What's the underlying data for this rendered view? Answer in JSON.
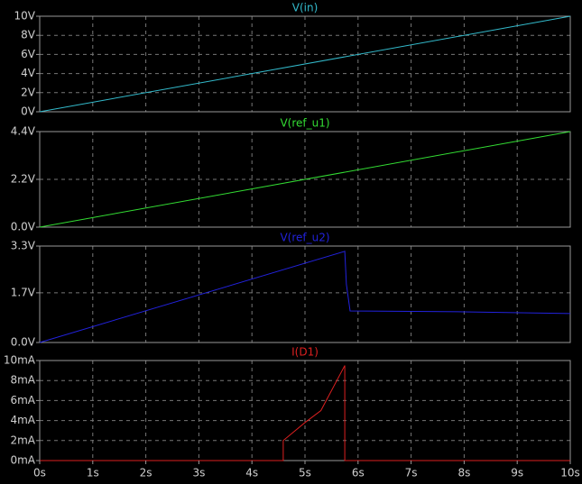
{
  "chart_data": [
    {
      "type": "line",
      "xlim": [
        0,
        10
      ],
      "ylim": [
        0,
        10
      ],
      "grid": true,
      "yticks": [
        {
          "value": 0,
          "label": "0V"
        },
        {
          "value": 2,
          "label": "2V"
        },
        {
          "value": 4,
          "label": "4V"
        },
        {
          "value": 6,
          "label": "6V"
        },
        {
          "value": 8,
          "label": "8V"
        },
        {
          "value": 10,
          "label": "10V"
        }
      ],
      "x": [
        0,
        10
      ],
      "series": [
        {
          "name": "V(in)",
          "color": "#33bbcc",
          "values": [
            0,
            10
          ]
        }
      ]
    },
    {
      "type": "line",
      "xlim": [
        0,
        10
      ],
      "ylim": [
        0,
        4.4
      ],
      "grid": true,
      "yticks": [
        {
          "value": 0,
          "label": "0.0V"
        },
        {
          "value": 2.2,
          "label": "2.2V"
        },
        {
          "value": 4.4,
          "label": "4.4V"
        }
      ],
      "x": [
        0,
        10
      ],
      "series": [
        {
          "name": "V(ref_u1)",
          "color": "#33dd33",
          "values": [
            0,
            4.4
          ]
        }
      ]
    },
    {
      "type": "line",
      "xlim": [
        0,
        10
      ],
      "ylim": [
        0,
        3.3
      ],
      "grid": true,
      "yticks": [
        {
          "value": 0,
          "label": "0.0V"
        },
        {
          "value": 1.7,
          "label": "1.7V"
        },
        {
          "value": 3.3,
          "label": "3.3V"
        }
      ],
      "x": [
        0,
        5.75,
        5.78,
        5.85,
        8,
        10
      ],
      "series": [
        {
          "name": "V(ref_u2)",
          "color": "#2222dd",
          "values": [
            0,
            3.12,
            2.0,
            1.08,
            1.05,
            0.99
          ]
        }
      ]
    },
    {
      "type": "line",
      "xlim": [
        0,
        10
      ],
      "ylim": [
        0,
        10
      ],
      "grid": true,
      "yticks": [
        {
          "value": 0,
          "label": "0mA"
        },
        {
          "value": 2,
          "label": "2mA"
        },
        {
          "value": 4,
          "label": "4mA"
        },
        {
          "value": 6,
          "label": "6mA"
        },
        {
          "value": 8,
          "label": "8mA"
        },
        {
          "value": 10,
          "label": "10mA"
        }
      ],
      "xticks": [
        {
          "value": 0,
          "label": "0s"
        },
        {
          "value": 1,
          "label": "1s"
        },
        {
          "value": 2,
          "label": "2s"
        },
        {
          "value": 3,
          "label": "3s"
        },
        {
          "value": 4,
          "label": "4s"
        },
        {
          "value": 5,
          "label": "5s"
        },
        {
          "value": 6,
          "label": "6s"
        },
        {
          "value": 7,
          "label": "7s"
        },
        {
          "value": 8,
          "label": "8s"
        },
        {
          "value": 9,
          "label": "9s"
        },
        {
          "value": 10,
          "label": "10s"
        }
      ],
      "x": [
        0,
        4.59,
        4.59,
        5,
        5.3,
        5.75,
        5.75,
        10
      ],
      "series": [
        {
          "name": "I(D1)",
          "color": "#dd2020",
          "values": [
            0,
            0,
            2,
            3.8,
            5,
            9.5,
            0,
            0
          ]
        }
      ]
    }
  ]
}
